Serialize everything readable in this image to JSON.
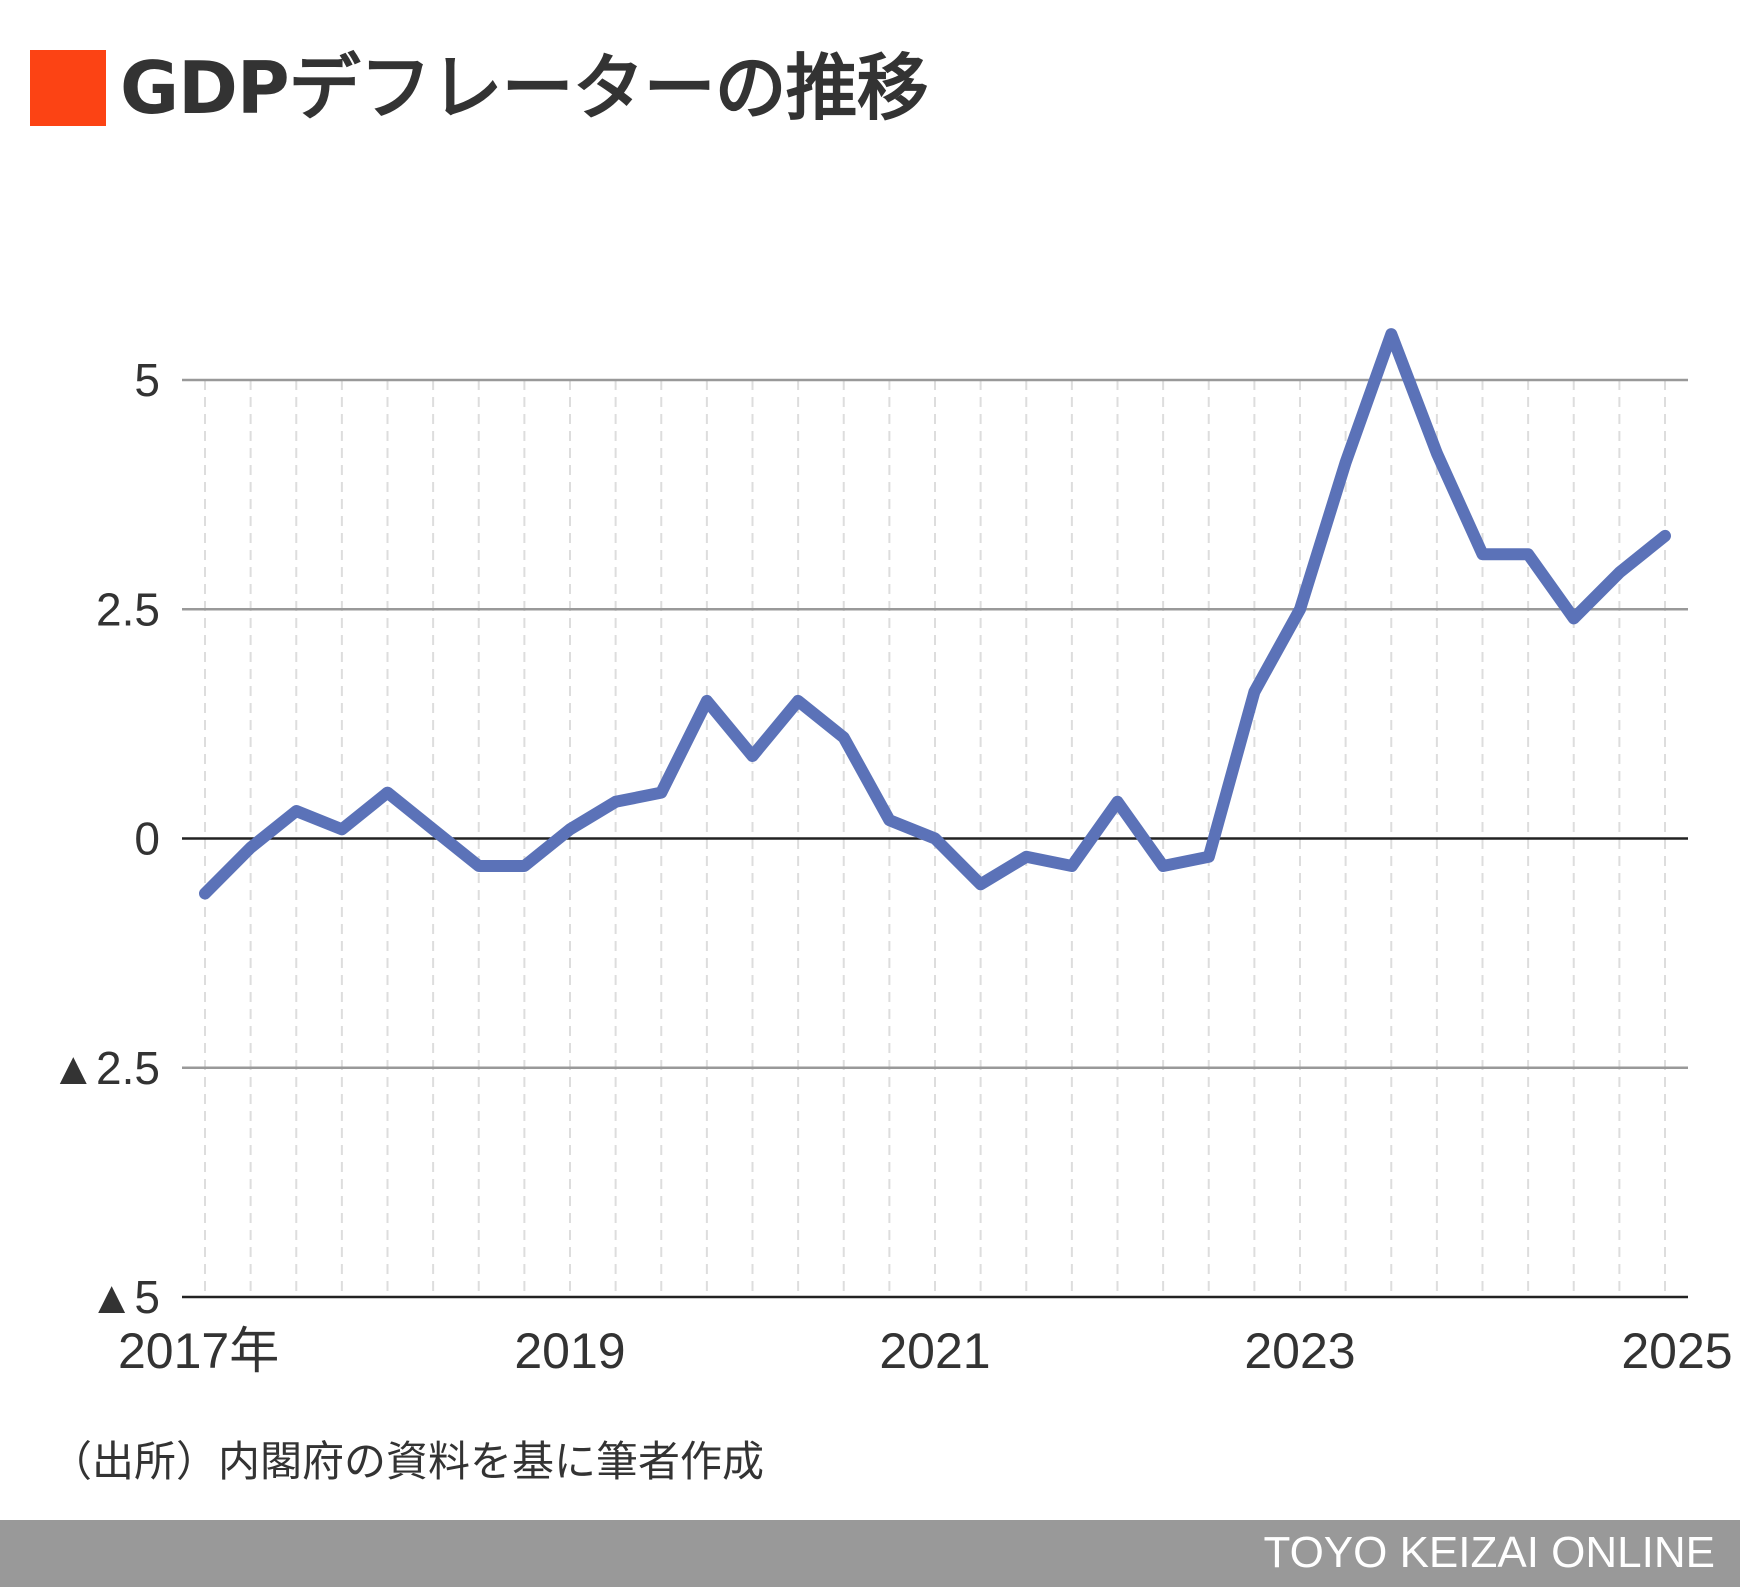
{
  "title": "GDPデフレーターの推移",
  "accent_color": "#fc4314",
  "line_color": "#5b72b8",
  "chart_data": {
    "type": "line",
    "title": "GDPデフレーターの推移",
    "xlabel": "",
    "ylabel": "",
    "ylim": [
      -5,
      5
    ],
    "yticks": [
      5,
      2.5,
      0,
      -2.5,
      -5
    ],
    "ytick_labels": [
      "5",
      "2.5",
      "0",
      "▲2.5",
      "▲5"
    ],
    "grid": true,
    "xtick_labels": [
      {
        "index": 0,
        "label": "2017年"
      },
      {
        "index": 8,
        "label": "2019"
      },
      {
        "index": 16,
        "label": "2021"
      },
      {
        "index": 24,
        "label": "2023"
      },
      {
        "index": 32,
        "label": "2025"
      }
    ],
    "series": [
      {
        "name": "GDPデフレーター",
        "values": [
          -0.6,
          -0.1,
          0.3,
          0.1,
          0.5,
          0.1,
          -0.3,
          -0.3,
          0.1,
          0.4,
          0.5,
          1.5,
          0.9,
          1.5,
          1.1,
          0.2,
          0.0,
          -0.5,
          -0.2,
          -0.3,
          0.4,
          -0.3,
          -0.2,
          1.6,
          2.5,
          4.1,
          5.5,
          4.2,
          3.1,
          3.1,
          2.4,
          2.9,
          3.3
        ]
      }
    ]
  },
  "source": "（出所）内閣府の資料を基に筆者作成",
  "footer": "TOYO KEIZAI ONLINE"
}
